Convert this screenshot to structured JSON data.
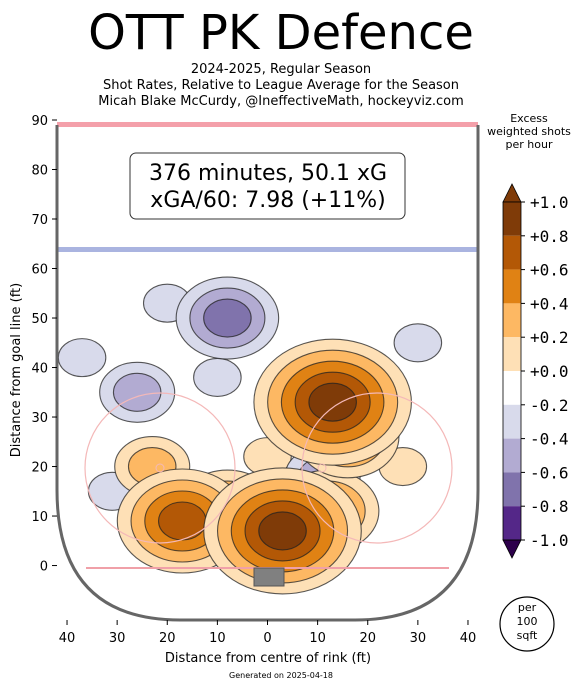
{
  "title": "OTT PK Defence",
  "subtitle_lines": [
    "2024-2025, Regular Season",
    "Shot Rates, Relative to League Average for the Season",
    "Micah Blake McCurdy, @IneffectiveMath, hockeyviz.com"
  ],
  "footer": "Generated on 2025-04-18",
  "stats_box": {
    "line1": "376 minutes, 50.1 xG",
    "line2": "xGA/60: 7.98 (+11%)"
  },
  "colorbar": {
    "label": "Excess weighted shots per hour",
    "label_lines": [
      "Excess",
      "weighted shots",
      "per hour"
    ],
    "ticks": [
      "+1.0",
      "+0.8",
      "+0.6",
      "+0.4",
      "+0.2",
      "+0.0",
      "-0.2",
      "-0.4",
      "-0.6",
      "-0.8",
      "-1.0"
    ],
    "colors": [
      "#7f3b08",
      "#b35806",
      "#e08214",
      "#fdb863",
      "#fee0b6",
      "#ffffff",
      "#d8daeb",
      "#b2abd2",
      "#8073ac",
      "#542788",
      "#2d004b"
    ]
  },
  "unit_badge": [
    "per",
    "100",
    "sqft"
  ],
  "chart_data": {
    "type": "heatmap",
    "title": "OTT PK Defence",
    "xlabel": "Distance from centre of rink (ft)",
    "ylabel": "Distance from goal line (ft)",
    "xlim": [
      -42,
      42
    ],
    "ylim": [
      -11,
      90
    ],
    "x_ticks": [
      -40,
      -30,
      -20,
      -10,
      0,
      10,
      20,
      30,
      40
    ],
    "x_tick_labels": [
      "40",
      "30",
      "20",
      "10",
      "0",
      "10",
      "20",
      "30",
      "40"
    ],
    "y_ticks": [
      0,
      10,
      20,
      30,
      40,
      50,
      60,
      70,
      80,
      90
    ],
    "y_tick_labels": [
      "0",
      "10",
      "20",
      "30",
      "40",
      "50",
      "60",
      "70",
      "80",
      "90"
    ],
    "value_range": [
      -1.0,
      1.0
    ],
    "hotspots": [
      {
        "x": 3,
        "y": 7,
        "value": 1.0
      },
      {
        "x": 12,
        "y": 11,
        "value": 0.6
      },
      {
        "x": 13,
        "y": 33,
        "value": 0.9
      },
      {
        "x": 16,
        "y": 26,
        "value": 0.7
      },
      {
        "x": -17,
        "y": 9,
        "value": 0.8
      },
      {
        "x": -8,
        "y": 11,
        "value": 0.5
      },
      {
        "x": -23,
        "y": 20,
        "value": 0.4
      },
      {
        "x": 27,
        "y": 20,
        "value": 0.3
      },
      {
        "x": 0,
        "y": 22,
        "value": 0.3
      },
      {
        "x": -8,
        "y": 50,
        "value": -0.6
      },
      {
        "x": -20,
        "y": 53,
        "value": -0.3
      },
      {
        "x": -26,
        "y": 35,
        "value": -0.4
      },
      {
        "x": -10,
        "y": 38,
        "value": -0.3
      },
      {
        "x": 30,
        "y": 45,
        "value": -0.2
      },
      {
        "x": 11,
        "y": 18,
        "value": -0.4
      },
      {
        "x": -31,
        "y": 15,
        "value": -0.2
      },
      {
        "x": -37,
        "y": 42,
        "value": -0.2
      }
    ]
  }
}
